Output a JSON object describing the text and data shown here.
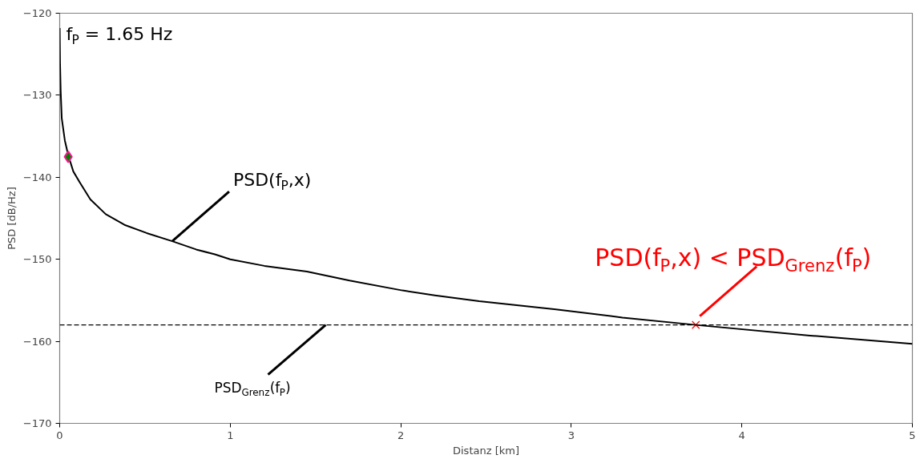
{
  "chart_data": {
    "type": "line",
    "xlabel": "Distanz [km]",
    "ylabel": "PSD [dB/Hz]",
    "xlim": [
      0,
      5
    ],
    "xticks": [
      0,
      1,
      2,
      3,
      4,
      5
    ],
    "ylim": [
      -170,
      -120
    ],
    "yticks": [
      {
        "value": -170,
        "label": "−170"
      },
      {
        "value": -160,
        "label": "−160"
      },
      {
        "value": -150,
        "label": "−150"
      },
      {
        "value": -140,
        "label": "−140"
      },
      {
        "value": -130,
        "label": "−130"
      },
      {
        "value": -120,
        "label": "−120"
      }
    ],
    "grid": false,
    "series": [
      {
        "color": "#000000",
        "line_style": "solid",
        "marker": "none",
        "x": [
          0,
          0.002,
          0.006,
          0.012,
          0.03,
          0.051,
          0.08,
          0.12,
          0.18,
          0.27,
          0.38,
          0.51,
          0.66,
          0.8,
          0.91,
          1.0,
          1.2,
          1.45,
          1.7,
          2.01,
          2.2,
          2.46,
          2.91,
          3.3,
          3.73,
          4.4,
          5.0
        ],
        "values": [
          -121.8,
          -126.0,
          -129.6,
          -132.8,
          -135.5,
          -137.4,
          -139.3,
          -140.7,
          -142.7,
          -144.5,
          -145.8,
          -146.8,
          -147.8,
          -148.8,
          -149.4,
          -150.0,
          -150.8,
          -151.5,
          -152.6,
          -153.8,
          -154.4,
          -155.1,
          -156.1,
          -157.1,
          -158.0,
          -159.3,
          -160.3
        ]
      },
      {
        "type": "scatter",
        "color": "#008000",
        "marker": "diamond",
        "x": [
          0.05
        ],
        "values": [
          -137.5
        ]
      },
      {
        "type": "scatter",
        "color": "#ff0000",
        "marker": "cross",
        "x": [
          3.73
        ],
        "values": [
          -158.0
        ]
      }
    ],
    "ref_lines": [
      {
        "axis": "y",
        "value": -158,
        "color": "#000000",
        "line_style": "dashed"
      }
    ],
    "annotations": [
      "f$_{P}$ = 1.65 Hz",
      {
        "text": "PSD(f$_{P}$,x)",
        "x": 0.66,
        "y": -147.8
      },
      {
        "text": "PSD$_{Grenz}$(f$_{P}$)",
        "x": 1.56,
        "y": -158
      },
      {
        "text": "PSD(f$_{P}$,x) < PSD$_{Grenz}$(f$_{P}$)",
        "x": 3.73,
        "y": -158
      }
    ]
  }
}
